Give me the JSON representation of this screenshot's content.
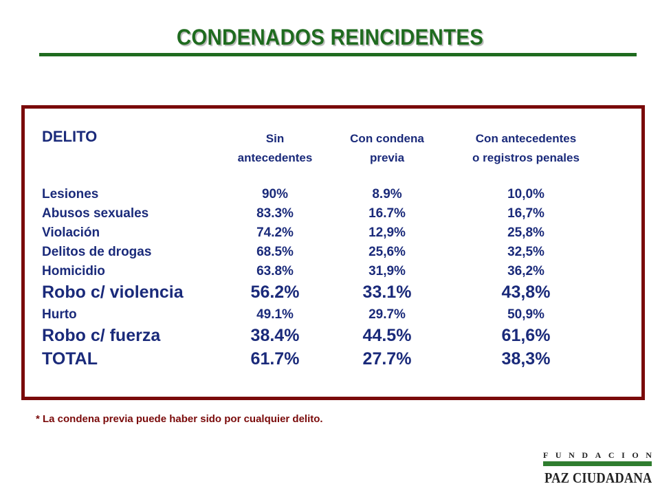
{
  "title": "CONDENADOS REINCIDENTES",
  "table": {
    "header": {
      "delito": "DELITO",
      "col1_line1": "Sin",
      "col1_line2": "antecedentes",
      "col2_line1": "Con condena",
      "col2_line2": "previa",
      "col3_line1": "Con antecedentes",
      "col3_line2": "o registros penales"
    },
    "rows": [
      {
        "delito": "Lesiones",
        "sin": "90%",
        "previa": "8.9%",
        "registros": "10,0%"
      },
      {
        "delito": "Abusos sexuales",
        "sin": "83.3%",
        "previa": "16.7%",
        "registros": "16,7%"
      },
      {
        "delito": "Violación",
        "sin": "74.2%",
        "previa": "12,9%",
        "registros": "25,8%"
      },
      {
        "delito": "Delitos de drogas",
        "sin": "68.5%",
        "previa": "25,6%",
        "registros": "32,5%"
      },
      {
        "delito": "Homicidio",
        "sin": "63.8%",
        "previa": "31,9%",
        "registros": "36,2%"
      },
      {
        "delito": "Robo c/ violencia",
        "sin": "56.2%",
        "previa": "33.1%",
        "registros": "43,8%"
      },
      {
        "delito": "Hurto",
        "sin": "49.1%",
        "previa": "29.7%",
        "registros": "50,9%"
      },
      {
        "delito": "Robo c/ fuerza",
        "sin": "38.4%",
        "previa": "44.5%",
        "registros": "61,6%"
      },
      {
        "delito": "TOTAL",
        "sin": "61.7%",
        "previa": "27.7%",
        "registros": "38,3%"
      }
    ]
  },
  "footnote": "* La condena previa puede haber sido por cualquier delito.",
  "logo": {
    "letters": [
      "F",
      "U",
      "N",
      "D",
      "A",
      "C",
      "I",
      "O",
      "N"
    ],
    "name": "PAZ CIUDADANA"
  },
  "colors": {
    "title_green": "#1f6b1f",
    "frame_maroon": "#7a0a0a",
    "text_navy": "#1a2a7a"
  }
}
